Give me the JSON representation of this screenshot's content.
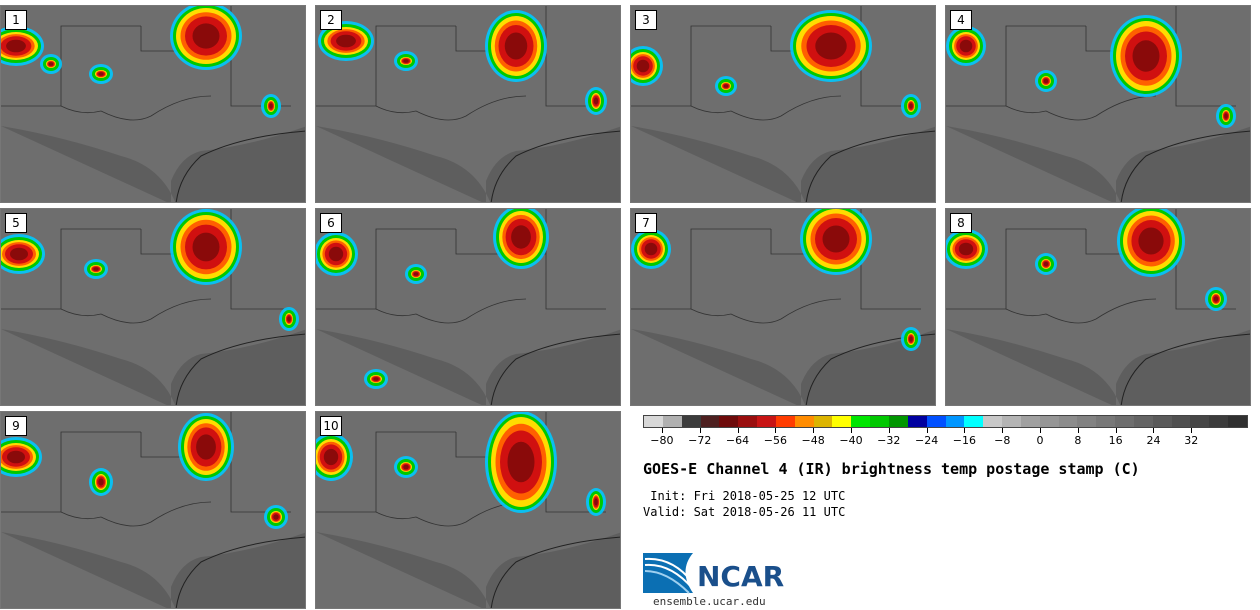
{
  "panels": [
    {
      "label": "1"
    },
    {
      "label": "2"
    },
    {
      "label": "3"
    },
    {
      "label": "4"
    },
    {
      "label": "5"
    },
    {
      "label": "6"
    },
    {
      "label": "7"
    },
    {
      "label": "8"
    },
    {
      "label": "9"
    },
    {
      "label": "10"
    }
  ],
  "colorbar": {
    "colors": [
      "#d8d8d8",
      "#b0b0b0",
      "#3c3c3c",
      "#4e2020",
      "#6e0b0b",
      "#9a0e0e",
      "#c81414",
      "#ff3c00",
      "#ff8c00",
      "#dcb400",
      "#ffff00",
      "#00e600",
      "#00c800",
      "#009600",
      "#0000a0",
      "#0050ff",
      "#0096ff",
      "#00ffff",
      "#c8c8c8",
      "#b4b4b4",
      "#a0a0a0",
      "#969696",
      "#8c8c8c",
      "#828282",
      "#787878",
      "#6e6e6e",
      "#646464",
      "#5a5a5a",
      "#505050",
      "#464646",
      "#3c3c3c",
      "#303030"
    ],
    "tick_labels": [
      "−80",
      "−72",
      "−64",
      "−56",
      "−48",
      "−40",
      "−32",
      "−24",
      "−16",
      "−8",
      "0",
      "8",
      "16",
      "24",
      "32"
    ]
  },
  "title": "GOES-E Channel 4 (IR) brightness temp postage stamp (C)",
  "init": " Init: Fri 2018-05-25 12 UTC",
  "valid": "Valid: Sat 2018-05-26 11 UTC",
  "logo": {
    "text": "NCAR",
    "url": "ensemble.ucar.edu"
  }
}
